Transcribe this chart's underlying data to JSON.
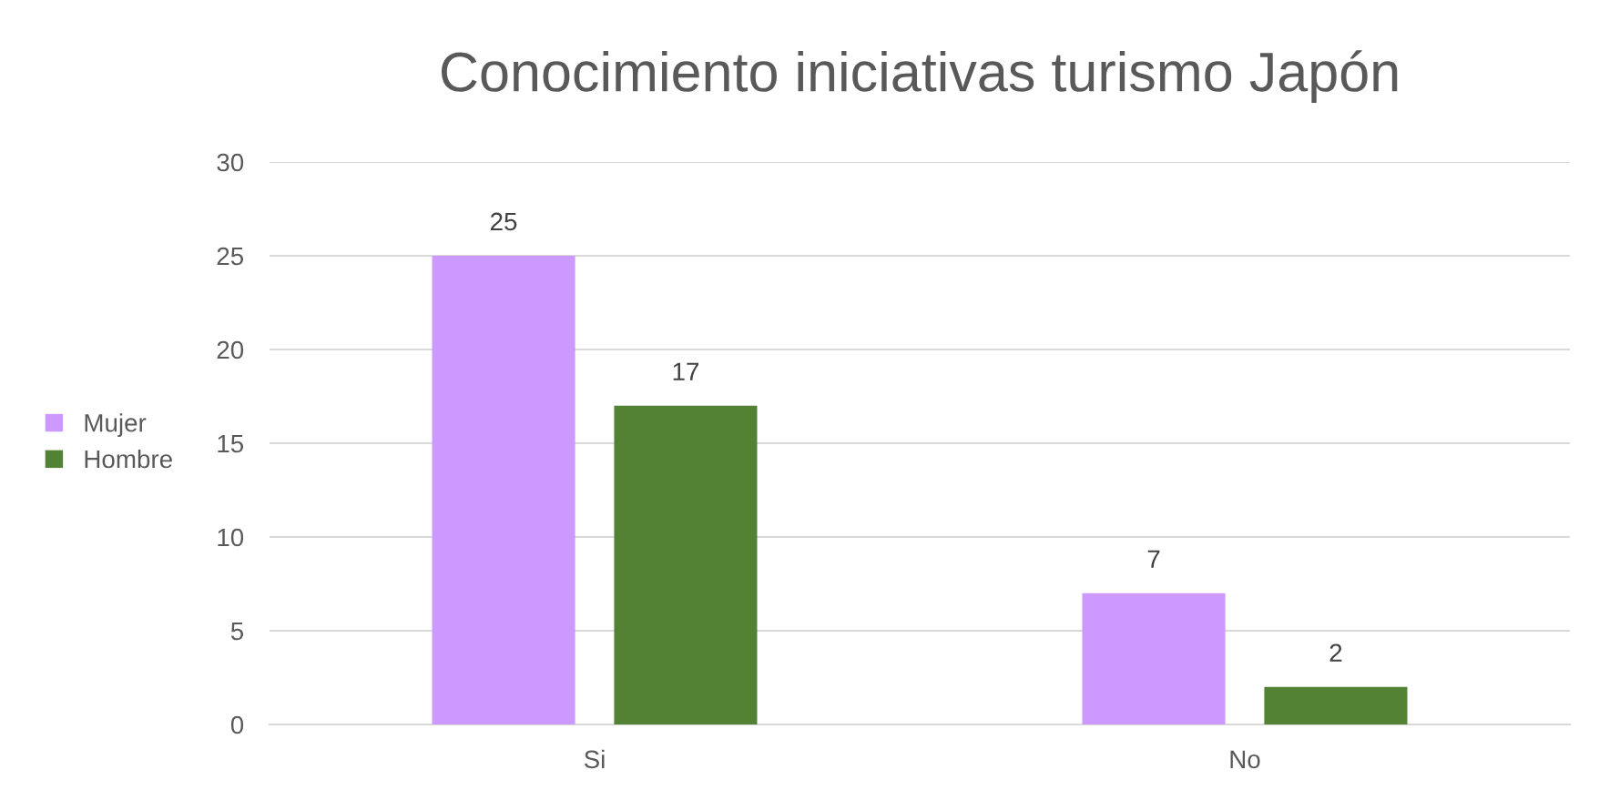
{
  "chart_data": {
    "type": "bar",
    "title": "Conocimiento iniciativas turismo Japón",
    "categories": [
      "Si",
      "No"
    ],
    "series": [
      {
        "name": "Mujer",
        "color": "#cc99ff",
        "values": [
          25,
          7
        ]
      },
      {
        "name": "Hombre",
        "color": "#548235",
        "values": [
          17,
          2
        ]
      }
    ],
    "ylim": [
      0,
      30
    ],
    "yticks": [
      0,
      5,
      10,
      15,
      20,
      25,
      30
    ],
    "grid": "y",
    "legend": "left",
    "data_labels": true
  }
}
